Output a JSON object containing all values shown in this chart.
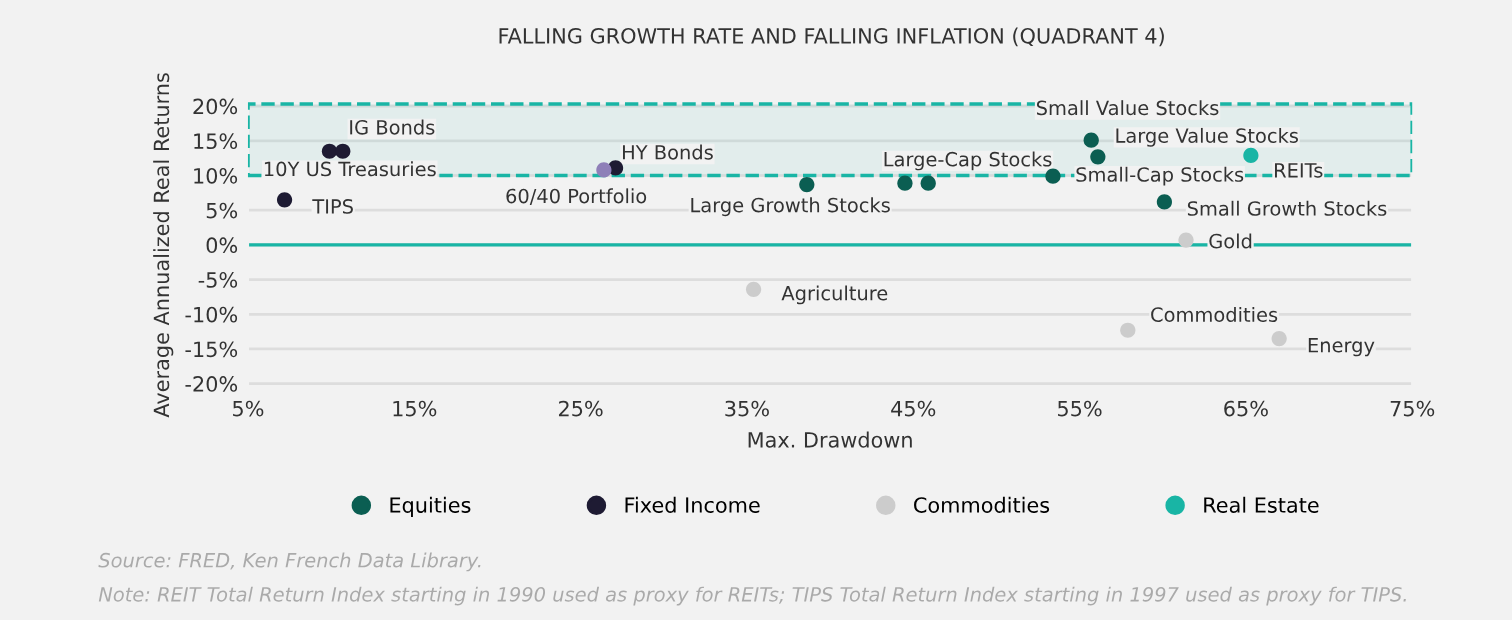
{
  "chart_data": {
    "type": "scatter",
    "title": "FALLING GROWTH RATE AND FALLING INFLATION (QUADRANT 4)",
    "xlabel": "Max. Drawdown",
    "ylabel": "Average Annualized Real Returns",
    "series": [
      {
        "name": "Equities",
        "color": "#0b5e52",
        "x": [
          38.6,
          44.5,
          45.9,
          53.4,
          55.7,
          56.1,
          60.1
        ],
        "values": [
          8.7,
          8.9,
          8.9,
          9.9,
          15.1,
          12.7,
          6.2
        ]
      },
      {
        "name": "Fixed Income",
        "color": "#1e1b33",
        "x": [
          9.9,
          10.7,
          7.2,
          27.1
        ],
        "values": [
          13.5,
          13.5,
          6.5,
          11.1
        ]
      },
      {
        "name": "Commodities",
        "color": "#cccccc",
        "x": [
          35.4,
          57.9,
          67.0,
          61.4
        ],
        "values": [
          -6.4,
          -12.3,
          -13.5,
          0.7
        ]
      },
      {
        "name": "Real Estate",
        "color": "#19b5a5",
        "x": [
          65.3
        ],
        "values": [
          12.9
        ]
      },
      {
        "color": "#8e7fb8",
        "x": [
          26.4
        ],
        "values": [
          10.8
        ]
      }
    ],
    "annotations": [
      {
        "text": "Large Growth Stocks",
        "x": 38.6,
        "y": 8.7
      },
      {
        "text": "Large-Cap Stocks",
        "x": 44.5,
        "y": 8.9
      },
      {
        "text": "Small-Cap Stocks",
        "x": 53.4,
        "y": 9.9
      },
      {
        "text": "Small Value Stocks",
        "x": 55.7,
        "y": 15.1
      },
      {
        "text": "Large Value Stocks",
        "x": 56.1,
        "y": 12.7
      },
      {
        "text": "Small Growth Stocks",
        "x": 60.1,
        "y": 6.2
      },
      {
        "text": "10Y US Treasuries",
        "x": 9.9,
        "y": 13.5
      },
      {
        "text": "IG Bonds",
        "x": 10.7,
        "y": 13.5
      },
      {
        "text": "TIPS",
        "x": 7.2,
        "y": 6.5
      },
      {
        "text": "HY Bonds",
        "x": 27.1,
        "y": 11.1
      },
      {
        "text": "Agriculture",
        "x": 35.4,
        "y": -6.4
      },
      {
        "text": "Commodities",
        "x": 57.9,
        "y": -12.3
      },
      {
        "text": "Energy",
        "x": 67.0,
        "y": -13.5
      },
      {
        "text": "Gold",
        "x": 61.4,
        "y": 0.7
      },
      {
        "text": "REITs",
        "x": 65.3,
        "y": 12.9
      },
      {
        "text": "60/40 Portfolio",
        "x": 26.4,
        "y": 10.8
      },
      "Source: FRED, Ken French Data Library.",
      "Note: REIT Total Return Index starting in 1990 used as proxy for REITs; TIPS Total Return Index starting in 1997 used as proxy for TIPS."
    ],
    "xlim": [
      5,
      75
    ],
    "ylim": [
      -21,
      21
    ],
    "xticks": [
      {
        "value": 5,
        "label": "5%"
      },
      {
        "value": 15,
        "label": "15%"
      },
      {
        "value": 25,
        "label": "25%"
      },
      {
        "value": 35,
        "label": "35%"
      },
      {
        "value": 45,
        "label": "45%"
      },
      {
        "value": 55,
        "label": "55%"
      },
      {
        "value": 65,
        "label": "65%"
      },
      {
        "value": 75,
        "label": "75%"
      }
    ],
    "yticks": [
      {
        "value": -20,
        "label": "-20%"
      },
      {
        "value": -15,
        "label": "-15%"
      },
      {
        "value": -10,
        "label": "-10%"
      },
      {
        "value": -5,
        "label": "-5%"
      },
      {
        "value": 0,
        "label": "0%"
      },
      {
        "value": 5,
        "label": "5%"
      },
      {
        "value": 10,
        "label": "10%"
      },
      {
        "value": 15,
        "label": "15%"
      },
      {
        "value": 20,
        "label": "20%"
      }
    ],
    "ref_lines": [
      {
        "axis": "y",
        "value": 0,
        "color": "#19b5a5"
      }
    ],
    "bands": [
      {
        "axis": "y",
        "from": 10,
        "to": 20.3,
        "color": "#19b5a5"
      }
    ],
    "grid": "y",
    "legend": "bottom",
    "marker": "circle"
  }
}
